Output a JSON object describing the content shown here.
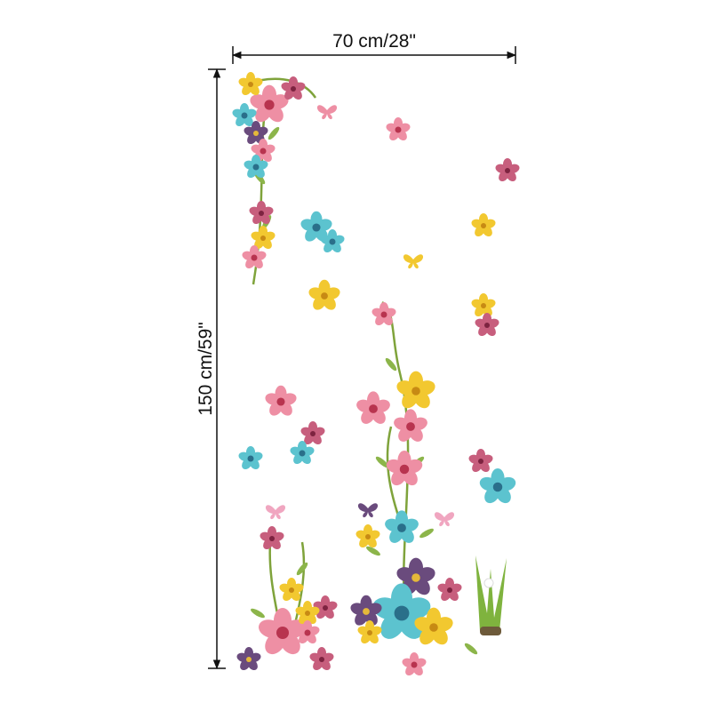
{
  "dimensions": {
    "width": "70 cm/28\"",
    "height": "150 cm/59\""
  }
}
